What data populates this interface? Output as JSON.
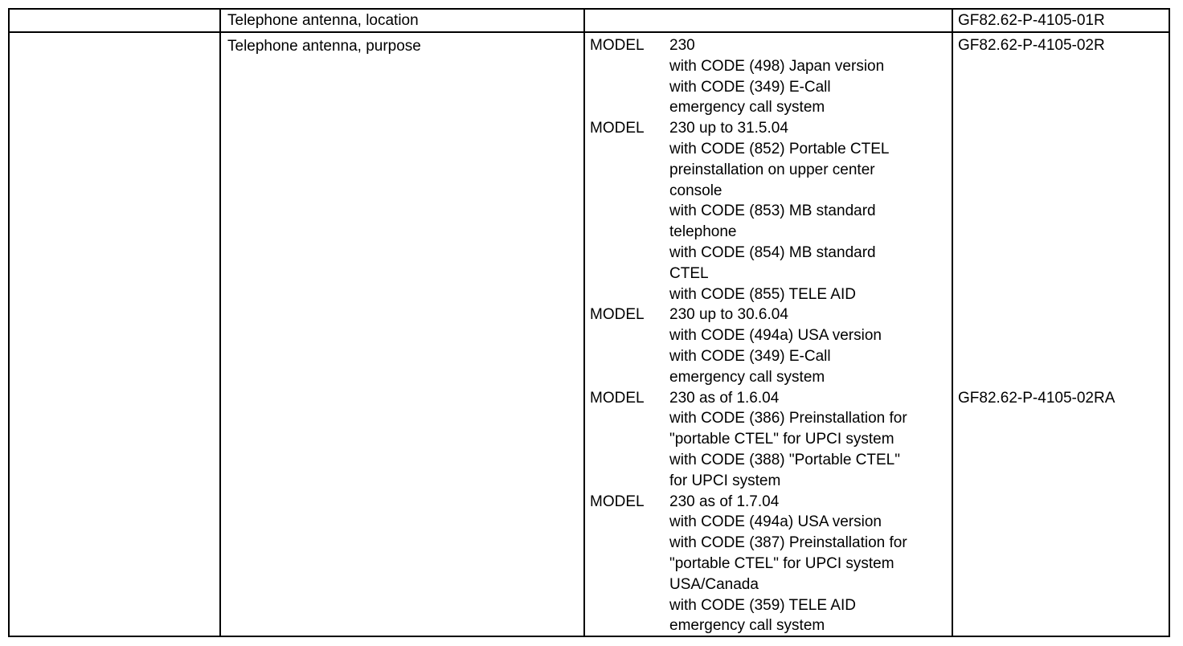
{
  "page": {
    "background_color": "#ffffff",
    "text_color": "#000000",
    "border_color": "#000000"
  },
  "table": {
    "rows": [
      {
        "col1": "",
        "title": "Telephone antenna, location",
        "models": [],
        "doc_code": "GF82.62-P-4105-01R"
      },
      {
        "col1": "",
        "title": "Telephone antenna, purpose",
        "models": [
          {
            "label": "MODEL",
            "lines": [
              "230",
              "with CODE (498) Japan version",
              "with CODE (349) E-Call",
              "emergency call system"
            ],
            "doc_code": "GF82.62-P-4105-02R"
          },
          {
            "label": "MODEL",
            "lines": [
              "230 up to 31.5.04",
              "with CODE (852) Portable CTEL",
              "preinstallation on upper center",
              "console",
              "with CODE (853) MB standard",
              "telephone",
              "with CODE (854) MB standard",
              "CTEL",
              "with CODE (855) TELE AID"
            ],
            "doc_code": null
          },
          {
            "label": "MODEL",
            "lines": [
              "230 up to 30.6.04",
              "with CODE (494a) USA version",
              "with CODE (349) E-Call",
              "emergency call system"
            ],
            "doc_code": null
          },
          {
            "label": "MODEL",
            "lines": [
              "230 as of 1.6.04",
              "with CODE (386) Preinstallation for",
              "\"portable CTEL\" for UPCI system",
              "with CODE (388) \"Portable CTEL\"",
              "for UPCI system"
            ],
            "doc_code": "GF82.62-P-4105-02RA"
          },
          {
            "label": "MODEL",
            "lines": [
              "230 as of 1.7.04",
              "with CODE (494a) USA version",
              "with CODE (387) Preinstallation for",
              "\"portable CTEL\" for UPCI system",
              "USA/Canada",
              "with CODE (359) TELE AID",
              "emergency call system"
            ],
            "doc_code": null
          }
        ],
        "doc_code": ""
      }
    ]
  }
}
